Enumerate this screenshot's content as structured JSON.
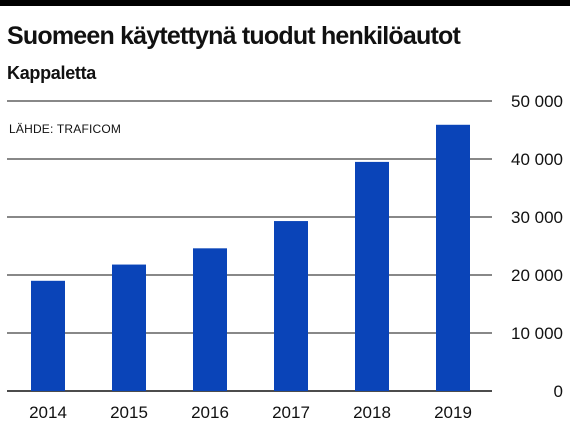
{
  "header": {
    "title": "Suomeen käytettynä tuodut henkilöautot",
    "subtitle": "Kappaletta"
  },
  "source": "LÄHDE: TRAFICOM",
  "colors": {
    "bar": "#0a44b8",
    "gridline": "#111111",
    "text": "#111111"
  },
  "chart_data": {
    "type": "bar",
    "title": "Suomeen käytettynä tuodut henkilöautot",
    "subtitle": "Kappaletta",
    "categories": [
      "2014",
      "2015",
      "2016",
      "2017",
      "2018",
      "2019"
    ],
    "values": [
      19000,
      21800,
      24600,
      29300,
      39500,
      45900
    ],
    "ylim": [
      0,
      50000
    ],
    "yticks": [
      0,
      10000,
      20000,
      30000,
      40000,
      50000
    ],
    "ytick_labels": [
      "0",
      "10 000",
      "20 000",
      "30 000",
      "40 000",
      "50 000"
    ],
    "y_axis_side": "right",
    "grid": true,
    "legend": false
  }
}
